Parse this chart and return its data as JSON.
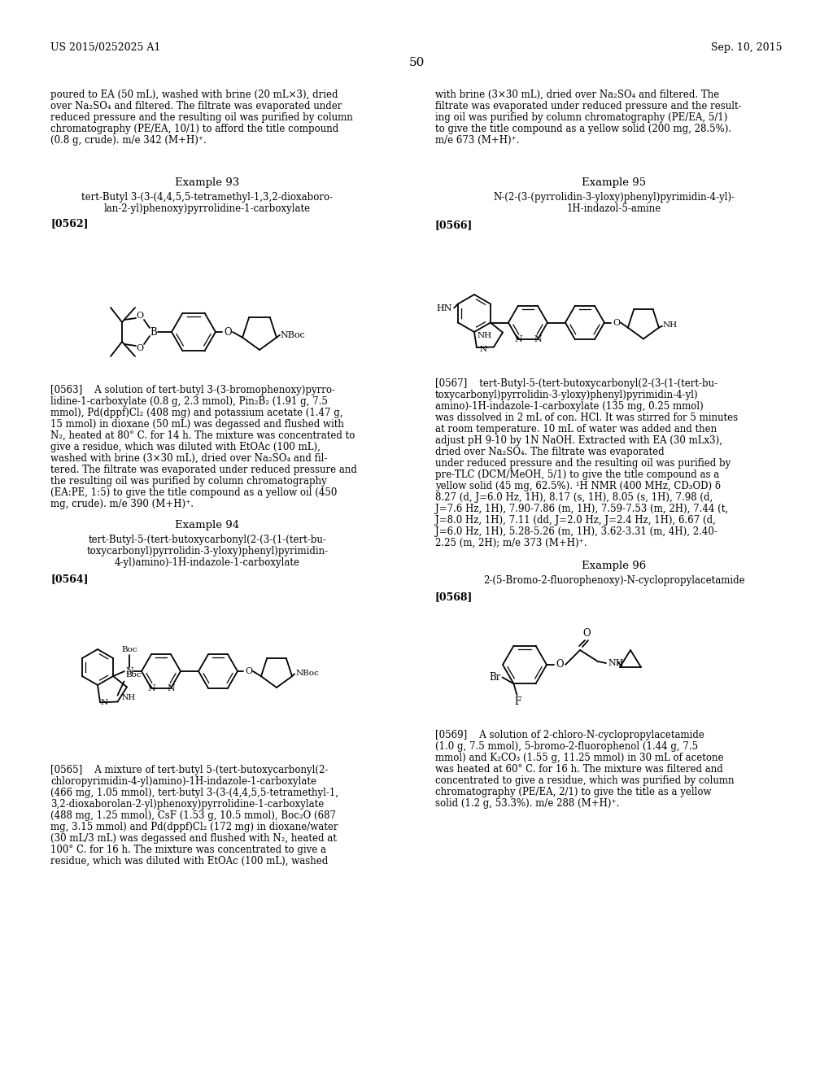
{
  "bg_color": "#ffffff",
  "header_left": "US 2015/0252025 A1",
  "header_right": "Sep. 10, 2015",
  "page_number": "50",
  "left_top_para": [
    "poured to EA (50 mL), washed with brine (20 mL×3), dried",
    "over Na₂SO₄ and filtered. The filtrate was evaporated under",
    "reduced pressure and the resulting oil was purified by column",
    "chromatography (PE/EA, 10/1) to afford the title compound",
    "(0.8 g, crude). m/e 342 (M+H)⁺."
  ],
  "right_top_para": [
    "with brine (3×30 mL), dried over Na₂SO₄ and filtered. The",
    "filtrate was evaporated under reduced pressure and the result-",
    "ing oil was purified by column chromatography (PE/EA, 5/1)",
    "to give the title compound as a yellow solid (200 mg, 28.5%).",
    "m/e 673 (M+H)⁺."
  ],
  "ex93_title": "Example 93",
  "ex93_name": [
    "tert-Butyl 3-(3-(4,4,5,5-tetramethyl-1,3,2-dioxaboro-",
    "lan-2-yl)phenoxy)pyrrolidine-1-carboxylate"
  ],
  "ex93_label": "[0562]",
  "ex93_para": [
    "[0563]    A solution of tert-butyl 3-(3-bromophenoxy)pyrro-",
    "lidine-1-carboxylate (0.8 g, 2.3 mmol), Pin₂B₂ (1.91 g, 7.5",
    "mmol), Pd(dppf)Cl₂ (408 mg) and potassium acetate (1.47 g,",
    "15 mmol) in dioxane (50 mL) was degassed and flushed with",
    "N₂, heated at 80° C. for 14 h. The mixture was concentrated to",
    "give a residue, which was diluted with EtOAc (100 mL),",
    "washed with brine (3×30 mL), dried over Na₂SO₄ and fil-",
    "tered. The filtrate was evaporated under reduced pressure and",
    "the resulting oil was purified by column chromatography",
    "(EA:PE, 1:5) to give the title compound as a yellow oil (450",
    "mg, crude). m/e 390 (M+H)⁺."
  ],
  "ex94_title": "Example 94",
  "ex94_name": [
    "tert-Butyl-5-(tert-butoxycarbonyl(2-(3-(1-(tert-bu-",
    "toxycarbonyl)pyrrolidin-3-yloxy)phenyl)pyrimidin-",
    "4-yl)amino)-1H-indazole-1-carboxylate"
  ],
  "ex94_label": "[0564]",
  "ex94_para": [
    "[0565]    A mixture of tert-butyl 5-(tert-butoxycarbonyl(2-",
    "chloropyrimidin-4-yl)amino)-1H-indazole-1-carboxylate",
    "(466 mg, 1.05 mmol), tert-butyl 3-(3-(4,4,5,5-tetramethyl-1,",
    "3,2-dioxaborolan-2-yl)phenoxy)pyrrolidine-1-carboxylate",
    "(488 mg, 1.25 mmol), CsF (1.53 g, 10.5 mmol), Boc₂O (687",
    "mg, 3.15 mmol) and Pd(dppf)Cl₂ (172 mg) in dioxane/water",
    "(30 mL/3 mL) was degassed and flushed with N₂, heated at",
    "100° C. for 16 h. The mixture was concentrated to give a",
    "residue, which was diluted with EtOAc (100 mL), washed"
  ],
  "ex95_title": "Example 95",
  "ex95_name": [
    "N-(2-(3-(pyrrolidin-3-yloxy)phenyl)pyrimidin-4-yl)-",
    "1H-indazol-5-amine"
  ],
  "ex95_label": "[0566]",
  "ex95_para": [
    "[0567]    tert-Butyl-5-(tert-butoxycarbonyl(2-(3-(1-(tert-bu-",
    "toxycarbonyl)pyrrolidin-3-yloxy)phenyl)pyrimidin-4-yl)",
    "amino)-1H-indazole-1-carboxylate (135 mg, 0.25 mmol)",
    "was dissolved in 2 mL of con. HCl. It was stirred for 5 minutes",
    "at room temperature. 10 mL of water was added and then",
    "adjust pH 9-10 by 1N NaOH. Extracted with EA (30 mLx3),",
    "dried over Na₂SO₄. The filtrate was evaporated",
    "under reduced pressure and the resulting oil was purified by",
    "pre-TLC (DCM/MeOH, 5/1) to give the title compound as a",
    "yellow solid (45 mg, 62.5%). ¹H NMR (400 MHz, CD₃OD) δ",
    "8.27 (d, J=6.0 Hz, 1H), 8.17 (s, 1H), 8.05 (s, 1H), 7.98 (d,",
    "J=7.6 Hz, 1H), 7.90-7.86 (m, 1H), 7.59-7.53 (m, 2H), 7.44 (t,",
    "J=8.0 Hz, 1H), 7.11 (dd, J=2.0 Hz, J=2.4 Hz, 1H), 6.67 (d,",
    "J=6.0 Hz, 1H), 5.28-5.26 (m, 1H), 3.62-3.31 (m, 4H), 2.40-",
    "2.25 (m, 2H); m/e 373 (M+H)⁺."
  ],
  "ex96_title": "Example 96",
  "ex96_name": [
    "2-(5-Bromo-2-fluorophenoxy)-N-cyclopropylacetamide"
  ],
  "ex96_label": "[0568]",
  "ex96_para": [
    "[0569]    A solution of 2-chloro-N-cyclopropylacetamide",
    "(1.0 g, 7.5 mmol), 5-bromo-2-fluorophenol (1.44 g, 7.5",
    "mmol) and K₂CO₃ (1.55 g, 11.25 mmol) in 30 mL of acetone",
    "was heated at 60° C. for 16 h. The mixture was filtered and",
    "concentrated to give a residue, which was purified by column",
    "chromatography (PE/EA, 2/1) to give the title as a yellow",
    "solid (1.2 g, 53.3%). m/e 288 (M+H)⁺."
  ]
}
